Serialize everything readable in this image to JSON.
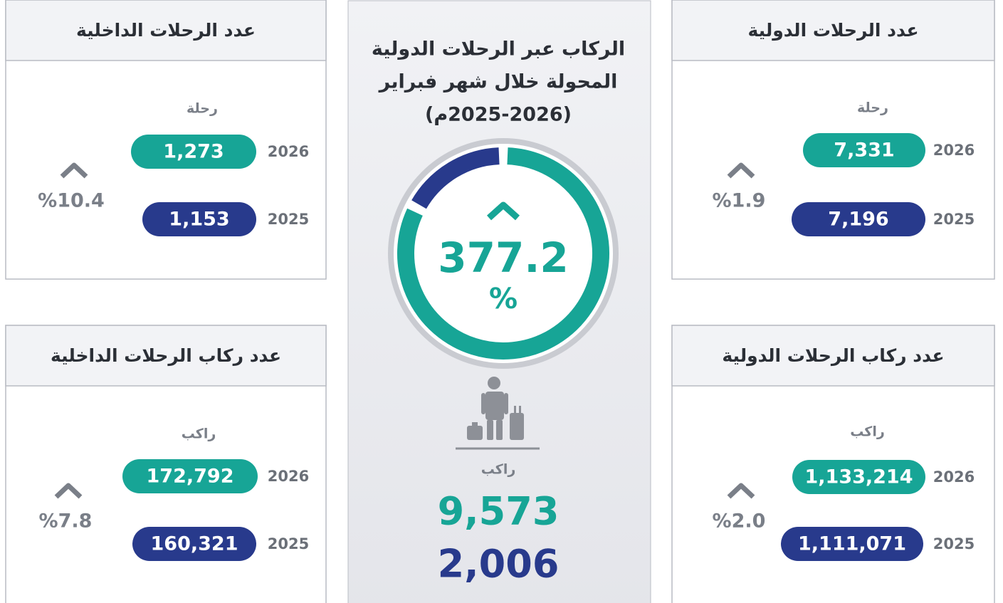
{
  "center": {
    "title_lines": [
      "الركاب عبر الرحلات الدولية",
      "المحولة خلال شهر فبراير",
      "(2025-2026م)"
    ],
    "change": "377.2",
    "change_unit": "%",
    "unit": "راكب",
    "value_2026": {
      "value": 9573,
      "label": "9,573"
    },
    "value_2025": {
      "value": 2006,
      "label": "2,006"
    }
  },
  "cards": [
    {
      "title": "عدد الرحلات الداخلية",
      "unit": "رحلة",
      "rows": [
        {
          "year": "2026",
          "value": "1,273"
        },
        {
          "year": "2025",
          "value": "1,153"
        }
      ],
      "change": "%10.4"
    },
    {
      "title": "عدد ركاب الرحلات الداخلية",
      "unit": "راكب",
      "rows": [
        {
          "year": "2026",
          "value": "172,792"
        },
        {
          "year": "2025",
          "value": "160,321"
        }
      ],
      "change": "%7.8"
    },
    {
      "title": "عدد الرحلات الدولية",
      "unit": "رحلة",
      "rows": [
        {
          "year": "2026",
          "value": "7,331"
        },
        {
          "year": "2025",
          "value": "7,196"
        }
      ],
      "change": "%1.9"
    },
    {
      "title": "عدد ركاب الرحلات الدولية",
      "unit": "راكب",
      "rows": [
        {
          "year": "2026",
          "value": "1,133,214"
        },
        {
          "year": "2025",
          "value": "1,111,071"
        }
      ],
      "change": "%2.0"
    }
  ]
}
